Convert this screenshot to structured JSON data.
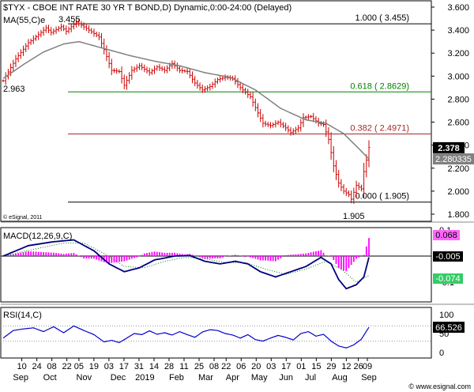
{
  "chart_data": [
    {
      "panel": "price",
      "type": "bar",
      "style": "ohlc",
      "title": "$TYX - CBOE INT RATE 30 YR T BOND,D) Dynamic,0:00-24:00 (Delayed)",
      "indicator_label": "MA(55,C)",
      "indicator_suffix": "e",
      "copyright": "© eSignal, 2011",
      "ylim": [
        1.8,
        3.6
      ],
      "y_ticks": [
        "3.600",
        "3.400",
        "3.200",
        "3.000",
        "2.800",
        "2.600",
        "2.400",
        "2.200",
        "2.000",
        "1.800"
      ],
      "price_path": [
        [
          0,
          2.96
        ],
        [
          5,
          3.15
        ],
        [
          10,
          3.29
        ],
        [
          14,
          3.36
        ],
        [
          17,
          3.42
        ],
        [
          19,
          3.38
        ],
        [
          23,
          3.43
        ],
        [
          25,
          3.39
        ],
        [
          29,
          3.47
        ],
        [
          34,
          3.4
        ],
        [
          38,
          3.34
        ],
        [
          40,
          3.23
        ],
        [
          43,
          3.05
        ],
        [
          46,
          3.04
        ],
        [
          48,
          2.92
        ],
        [
          51,
          3.05
        ],
        [
          54,
          3.09
        ],
        [
          58,
          3.03
        ],
        [
          61,
          3.08
        ],
        [
          64,
          3.05
        ],
        [
          67,
          3.11
        ],
        [
          70,
          3.05
        ],
        [
          73,
          3.04
        ],
        [
          76,
          2.94
        ],
        [
          79,
          2.88
        ],
        [
          82,
          2.91
        ],
        [
          85,
          2.97
        ],
        [
          88,
          2.99
        ],
        [
          91,
          2.98
        ],
        [
          94,
          2.9
        ],
        [
          96,
          2.86
        ],
        [
          98,
          2.82
        ],
        [
          101,
          2.68
        ],
        [
          103,
          2.59
        ],
        [
          106,
          2.57
        ],
        [
          109,
          2.6
        ],
        [
          112,
          2.55
        ],
        [
          114,
          2.51
        ],
        [
          117,
          2.55
        ],
        [
          119,
          2.64
        ],
        [
          122,
          2.65
        ],
        [
          125,
          2.59
        ],
        [
          127,
          2.58
        ],
        [
          129,
          2.45
        ],
        [
          131,
          2.22
        ],
        [
          133,
          2.07
        ],
        [
          135,
          2.0
        ],
        [
          137,
          1.97
        ],
        [
          138,
          1.93
        ],
        [
          140,
          2.05
        ],
        [
          142,
          2.02
        ],
        [
          143,
          2.17
        ],
        [
          144,
          2.27
        ],
        [
          145,
          2.38
        ]
      ],
      "series": [
        {
          "name": "MA(55,C)",
          "color": "#808080",
          "path": [
            [
              0,
              2.98
            ],
            [
              8,
              3.1
            ],
            [
              16,
              3.21
            ],
            [
              24,
              3.28
            ],
            [
              30,
              3.3
            ],
            [
              40,
              3.24
            ],
            [
              50,
              3.18
            ],
            [
              60,
              3.13
            ],
            [
              70,
              3.09
            ],
            [
              80,
              3.03
            ],
            [
              90,
              2.99
            ],
            [
              100,
              2.88
            ],
            [
              110,
              2.72
            ],
            [
              120,
              2.62
            ],
            [
              128,
              2.59
            ],
            [
              135,
              2.5
            ],
            [
              141,
              2.37
            ],
            [
              145,
              2.28
            ]
          ]
        }
      ],
      "fib_levels": [
        {
          "ratio": "1.000",
          "value": 3.455,
          "label": "1.000 ( 3.455)",
          "color": "#000000"
        },
        {
          "ratio": "0.618",
          "value": 2.8629,
          "label": "0.618 ( 2.8629)",
          "color": "#008000"
        },
        {
          "ratio": "0.382",
          "value": 2.4971,
          "label": "0.382 ( 2.4971)",
          "color": "#a52a2a"
        },
        {
          "ratio": "0.000",
          "value": 1.905,
          "label": "0.000 ( 1.905)",
          "color": "#000000"
        }
      ],
      "annotations": {
        "high": "3.455",
        "start": "2.963",
        "low": "1.905"
      },
      "last_price": {
        "value": 2.378,
        "label": "2.378"
      },
      "last_ma": {
        "value": 2.280335,
        "label": "2.280335"
      }
    },
    {
      "panel": "macd",
      "type": "line",
      "title": "MACD(12,26,9,C)",
      "ylim": [
        -0.13,
        0.13
      ],
      "zero_line": 0,
      "y_ticks": [
        {
          "value": 0.1,
          "label": "0.1"
        },
        {
          "value": -0.1,
          "label": "-0.1"
        }
      ],
      "series": [
        {
          "name": "MACD",
          "color": "#000080",
          "path": [
            [
              0,
              0.0
            ],
            [
              10,
              0.04
            ],
            [
              20,
              0.055
            ],
            [
              28,
              0.062
            ],
            [
              36,
              0.02
            ],
            [
              42,
              -0.03
            ],
            [
              48,
              -0.06
            ],
            [
              54,
              -0.045
            ],
            [
              60,
              -0.015
            ],
            [
              68,
              0.0
            ],
            [
              74,
              0.002
            ],
            [
              80,
              -0.02
            ],
            [
              86,
              -0.03
            ],
            [
              92,
              -0.02
            ],
            [
              97,
              -0.03
            ],
            [
              102,
              -0.06
            ],
            [
              108,
              -0.08
            ],
            [
              114,
              -0.06
            ],
            [
              120,
              -0.04
            ],
            [
              126,
              -0.005
            ],
            [
              130,
              -0.03
            ],
            [
              133,
              -0.09
            ],
            [
              136,
              -0.125
            ],
            [
              140,
              -0.11
            ],
            [
              143,
              -0.08
            ],
            [
              145,
              -0.005
            ]
          ]
        },
        {
          "name": "Signal",
          "color": "#008000",
          "dotted": true,
          "path": [
            [
              0,
              0.0
            ],
            [
              14,
              0.03
            ],
            [
              24,
              0.05
            ],
            [
              32,
              0.05
            ],
            [
              40,
              0.01
            ],
            [
              48,
              -0.04
            ],
            [
              56,
              -0.045
            ],
            [
              64,
              -0.02
            ],
            [
              72,
              -0.005
            ],
            [
              80,
              -0.01
            ],
            [
              88,
              -0.025
            ],
            [
              96,
              -0.025
            ],
            [
              104,
              -0.05
            ],
            [
              112,
              -0.07
            ],
            [
              120,
              -0.05
            ],
            [
              128,
              -0.02
            ],
            [
              134,
              -0.05
            ],
            [
              140,
              -0.1
            ],
            [
              145,
              -0.074
            ]
          ]
        }
      ],
      "labels": {
        "hist": "0.068",
        "macd": "-0.005",
        "signal": "-0.074"
      }
    },
    {
      "panel": "rsi",
      "type": "line",
      "title": "RSI(14,C)",
      "ylim": [
        0,
        100
      ],
      "y_ticks": [
        {
          "value": 100,
          "label": "100"
        },
        {
          "value": 50,
          "label": "50"
        },
        {
          "value": 0,
          "label": "0"
        }
      ],
      "ref_lines": [
        70,
        30
      ],
      "series": [
        {
          "name": "RSI",
          "color": "#0000cd",
          "path": [
            [
              0,
              38
            ],
            [
              4,
              58
            ],
            [
              8,
              62
            ],
            [
              12,
              65
            ],
            [
              16,
              55
            ],
            [
              20,
              68
            ],
            [
              24,
              52
            ],
            [
              28,
              70
            ],
            [
              32,
              58
            ],
            [
              36,
              47
            ],
            [
              40,
              28
            ],
            [
              43,
              32
            ],
            [
              46,
              26
            ],
            [
              49,
              38
            ],
            [
              52,
              50
            ],
            [
              55,
              47
            ],
            [
              58,
              57
            ],
            [
              61,
              48
            ],
            [
              64,
              52
            ],
            [
              67,
              46
            ],
            [
              70,
              55
            ],
            [
              73,
              47
            ],
            [
              76,
              40
            ],
            [
              79,
              54
            ],
            [
              82,
              60
            ],
            [
              85,
              58
            ],
            [
              88,
              50
            ],
            [
              91,
              46
            ],
            [
              94,
              38
            ],
            [
              97,
              47
            ],
            [
              100,
              34
            ],
            [
              103,
              30
            ],
            [
              106,
              38
            ],
            [
              109,
              45
            ],
            [
              112,
              40
            ],
            [
              115,
              33
            ],
            [
              118,
              50
            ],
            [
              121,
              55
            ],
            [
              124,
              43
            ],
            [
              127,
              48
            ],
            [
              130,
              30
            ],
            [
              133,
              17
            ],
            [
              136,
              12
            ],
            [
              139,
              20
            ],
            [
              142,
              35
            ],
            [
              145,
              66.526
            ]
          ]
        }
      ],
      "last_label": "66.526"
    }
  ],
  "x_axis": {
    "ticks": [
      {
        "i": 2,
        "label": "10"
      },
      {
        "i": 7,
        "label": "24"
      },
      {
        "i": 12,
        "label": "08"
      },
      {
        "i": 17,
        "label": "22"
      },
      {
        "i": 21,
        "label": "05"
      },
      {
        "i": 26,
        "label": "19"
      },
      {
        "i": 31,
        "label": "03"
      },
      {
        "i": 36,
        "label": "17"
      },
      {
        "i": 41,
        "label": "31"
      },
      {
        "i": 46,
        "label": "14"
      },
      {
        "i": 51,
        "label": "28"
      },
      {
        "i": 56,
        "label": "11"
      },
      {
        "i": 61,
        "label": "25"
      },
      {
        "i": 66,
        "label": "08"
      },
      {
        "i": 70,
        "label": "22"
      },
      {
        "i": 75,
        "label": "06"
      },
      {
        "i": 80,
        "label": "20"
      },
      {
        "i": 85,
        "label": "03"
      },
      {
        "i": 90,
        "label": "17"
      },
      {
        "i": 95,
        "label": "01"
      },
      {
        "i": 100,
        "label": "15"
      },
      {
        "i": 105,
        "label": "29"
      },
      {
        "i": 110,
        "label": "12"
      },
      {
        "i": 114,
        "label": "26"
      },
      {
        "i": 117,
        "label": "09"
      }
    ],
    "months": [
      {
        "i": 2,
        "label": "Sep"
      },
      {
        "i": 14,
        "label": "Oct"
      },
      {
        "i": 28,
        "label": "Nov"
      },
      {
        "i": 42,
        "label": "Dec"
      },
      {
        "i": 53,
        "label": "2019"
      },
      {
        "i": 66,
        "label": "Feb"
      },
      {
        "i": 78,
        "label": "Mar"
      },
      {
        "i": 89,
        "label": "Apr"
      },
      {
        "i": 100,
        "label": "May"
      },
      {
        "i": 111,
        "label": "Jun"
      },
      {
        "i": 121,
        "label": "Jul"
      },
      {
        "i": 133,
        "label": "Aug"
      },
      {
        "i": 145,
        "label": "Sep"
      }
    ],
    "watermark": "© www.esignal.com"
  },
  "colors": {
    "candle": "#cc0000",
    "hist": "#ff00ff",
    "hist_label_bg": "#ff66ff",
    "signal_label_bg": "#33cc66",
    "last_bg": "#000000",
    "ma_bg": "#808080"
  }
}
